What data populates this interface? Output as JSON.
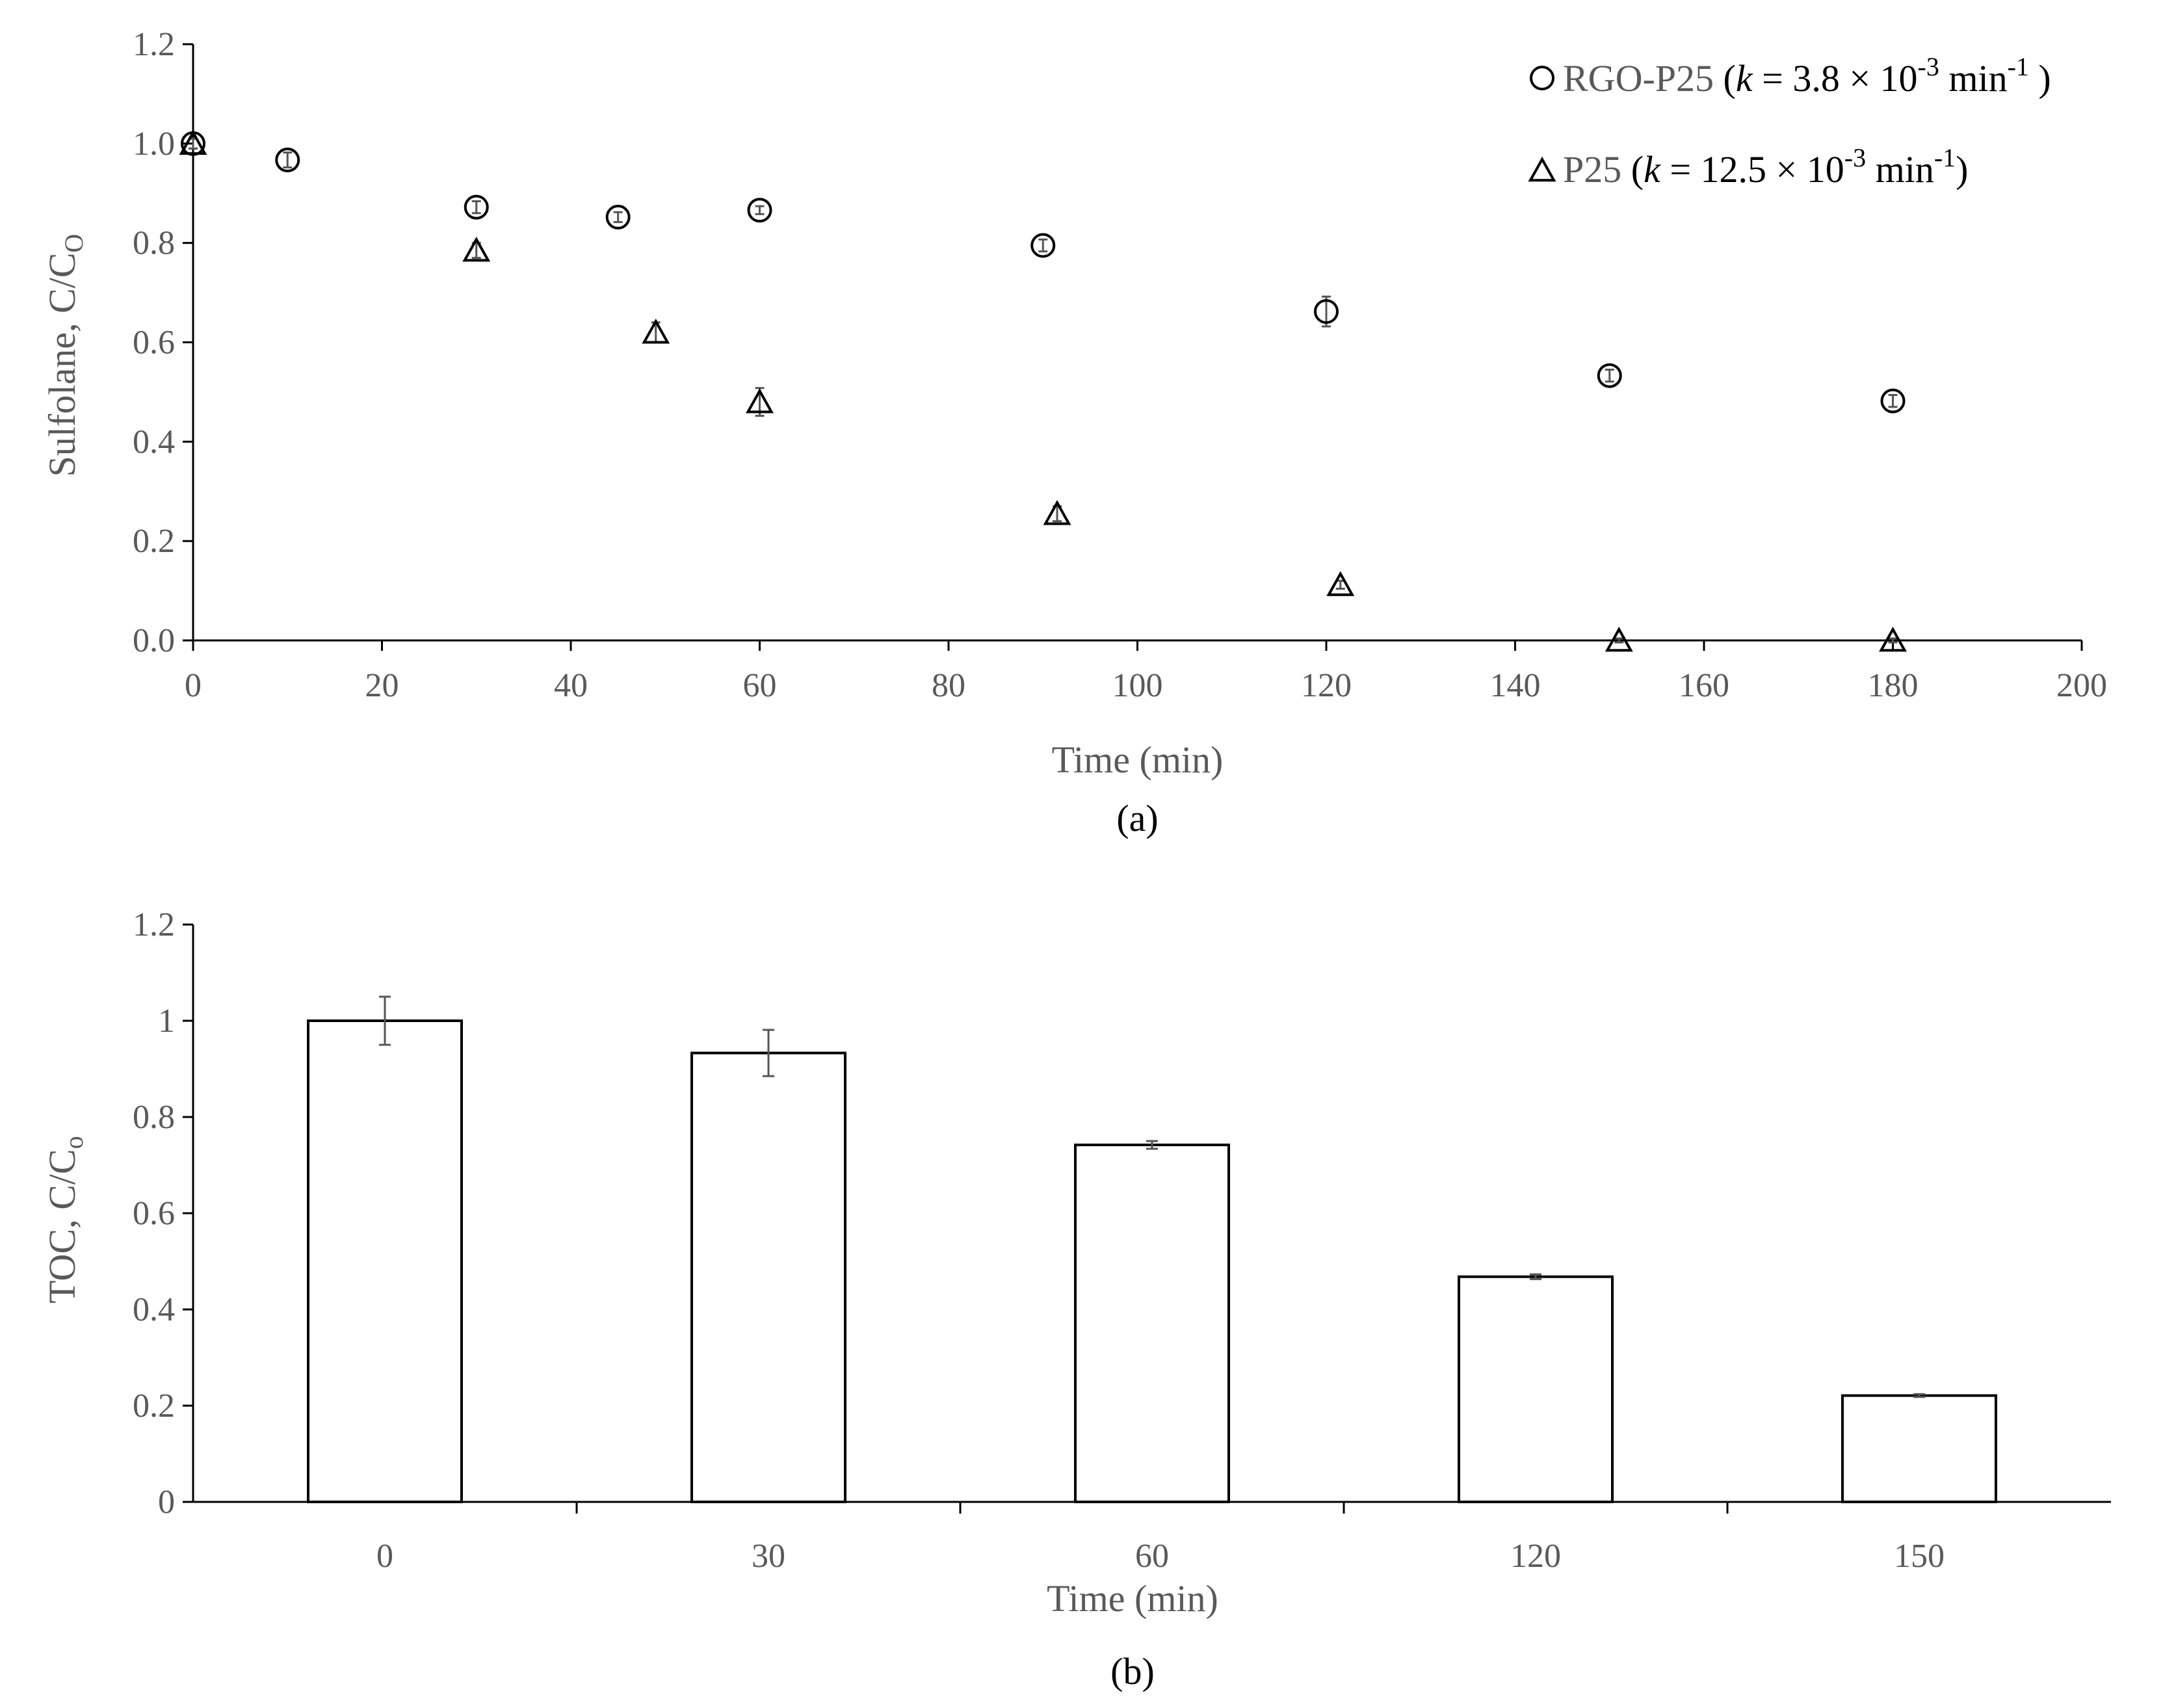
{
  "chart_data": [
    {
      "type": "scatter",
      "panel_label": "(a)",
      "xlabel": "Time (min)",
      "ylabel_main": "Sulfolane,  C/C",
      "ylabel_sub": "O",
      "xlim": [
        0,
        200
      ],
      "ylim": [
        0,
        1.2
      ],
      "xticks": [
        "0",
        "20",
        "40",
        "60",
        "80",
        "100",
        "120",
        "140",
        "160",
        "180",
        "200"
      ],
      "yticks": [
        "0.0",
        "0.2",
        "0.4",
        "0.6",
        "0.8",
        "1.0",
        "1.2"
      ],
      "legend_position": "top-right",
      "series": [
        {
          "name": "RGO-P25",
          "marker": "circle",
          "rate_label": {
            "open": "(",
            "k": "k",
            "eq": " = 3.8 × 10",
            "exp": "-3",
            "unit": " min",
            "unit_exp": "-1",
            "close": " )"
          },
          "x": [
            0,
            10,
            30,
            45,
            60,
            90,
            120,
            150,
            180
          ],
          "y": [
            1.0,
            0.967,
            0.872,
            0.852,
            0.866,
            0.795,
            0.662,
            0.533,
            0.482
          ],
          "err": [
            0.01,
            0.015,
            0.012,
            0.01,
            0.008,
            0.012,
            0.03,
            0.012,
            0.012
          ]
        },
        {
          "name": "P25",
          "marker": "triangle",
          "rate_label": {
            "open": "(",
            "k": "k",
            "eq": " = 12.5 × 10",
            "exp": "-3",
            "unit": " min",
            "unit_exp": "-1",
            "close": ")"
          },
          "x": [
            0,
            30,
            49,
            60,
            91.5,
            121.5,
            151,
            180
          ],
          "y": [
            1.0,
            0.785,
            0.62,
            0.48,
            0.255,
            0.112,
            0.0,
            0.0
          ],
          "err": [
            0.01,
            0.015,
            0.02,
            0.028,
            0.015,
            0.008,
            0.004,
            0.004
          ]
        }
      ]
    },
    {
      "type": "bar",
      "panel_label": "(b)",
      "xlabel": "Time (min)",
      "ylabel_main": "TOC, C/C",
      "ylabel_sub": "o",
      "ylim": [
        0,
        1.2
      ],
      "yticks": [
        "0",
        "0.2",
        "0.4",
        "0.6",
        "0.8",
        "1",
        "1.2"
      ],
      "categories": [
        "0",
        "30",
        "60",
        "120",
        "150"
      ],
      "values": [
        1.0,
        0.933,
        0.742,
        0.468,
        0.221
      ],
      "err": [
        0.05,
        0.048,
        0.008,
        0.005,
        0.003
      ]
    }
  ]
}
